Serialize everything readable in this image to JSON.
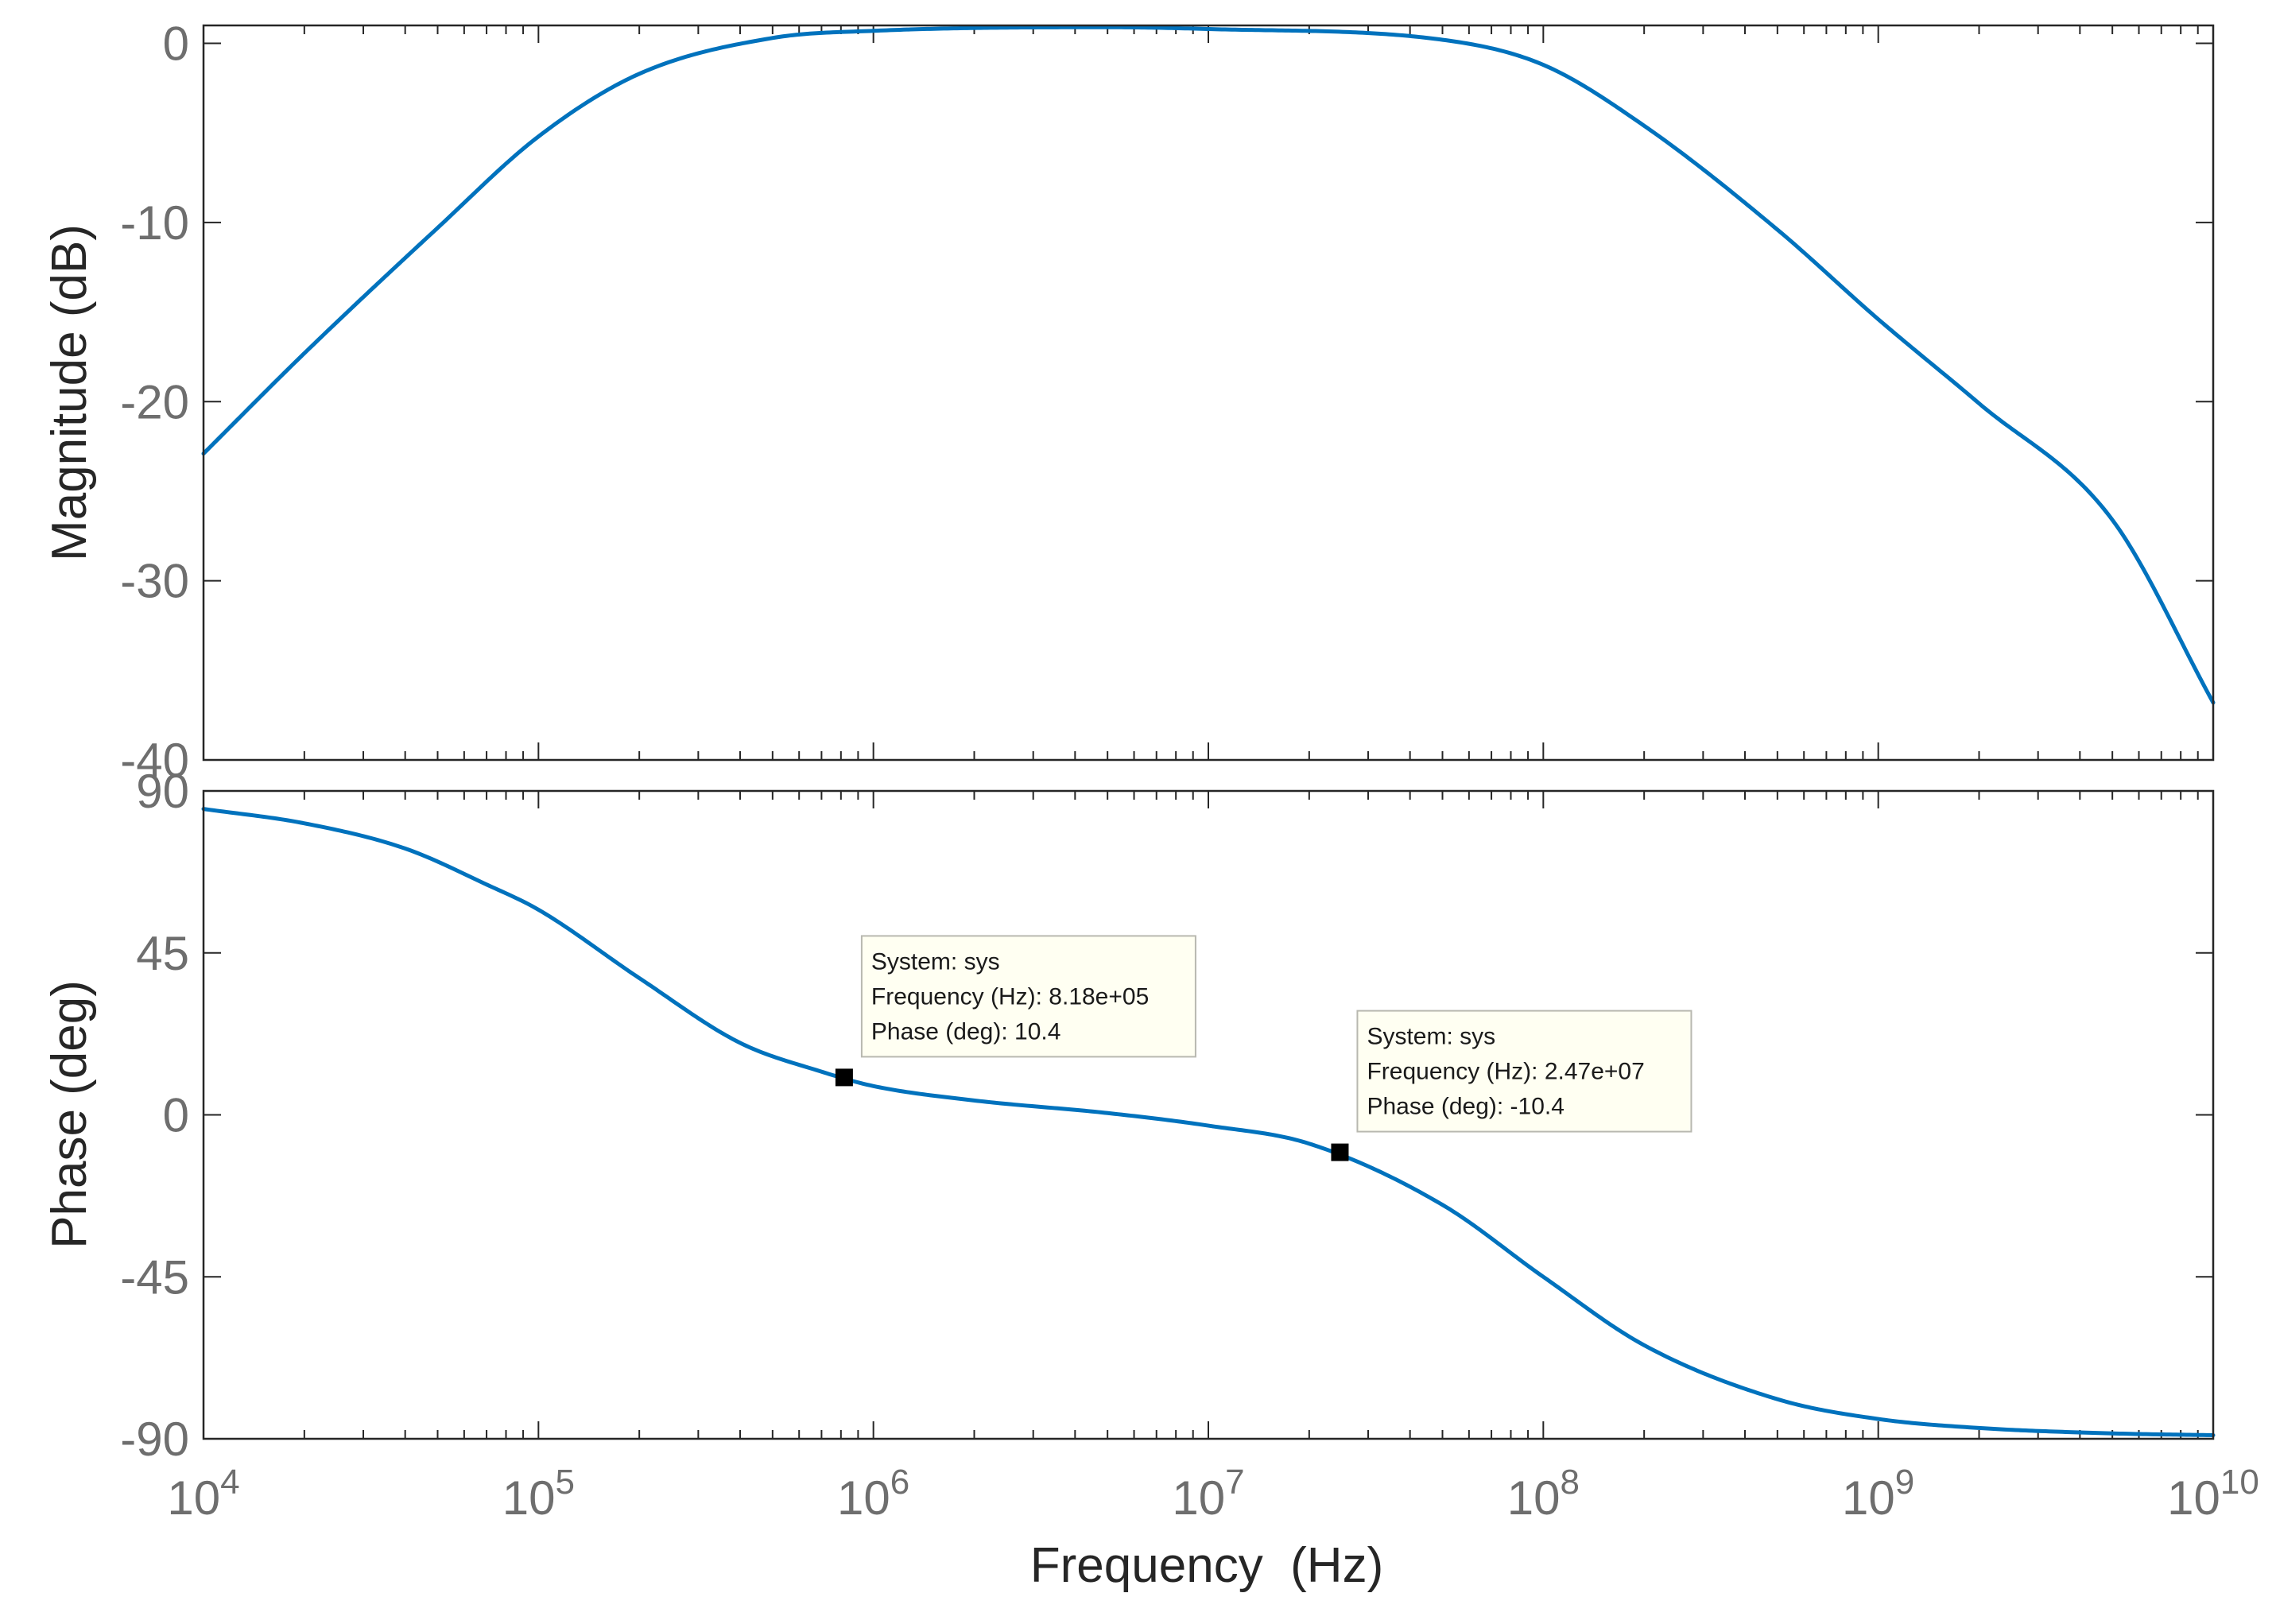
{
  "chart_data": [
    {
      "type": "line",
      "panel": "magnitude",
      "xscale": "log",
      "xlim": [
        10000,
        10000000000
      ],
      "ylim": [
        -40,
        1
      ],
      "yticks": [
        0,
        -10,
        -20,
        -30,
        -40
      ],
      "ytick_labels": [
        "0",
        "-10",
        "-20",
        "-30",
        "-40"
      ],
      "ylabel": "Magnitude (dB)",
      "xlabel": "",
      "grid": false,
      "series": [
        {
          "name": "sys",
          "color": "#0072bd",
          "x": [
            10000,
            20000,
            50000,
            100000,
            200000,
            500000,
            1000000,
            5000000,
            10000000,
            50000000,
            100000000,
            200000000,
            500000000,
            1000000000,
            2000000000,
            5000000000,
            10000000000
          ],
          "y": [
            -22.9,
            -17.3,
            -10.3,
            -5.2,
            -1.7,
            0.3,
            0.7,
            0.9,
            0.8,
            0.2,
            -1.2,
            -4.6,
            -10.4,
            -15.4,
            -20.1,
            -26.6,
            -36.8
          ]
        }
      ]
    },
    {
      "type": "line",
      "panel": "phase",
      "xscale": "log",
      "xlim": [
        10000,
        10000000000
      ],
      "ylim": [
        -90,
        90
      ],
      "yticks": [
        90,
        45,
        0,
        -45,
        -90
      ],
      "ytick_labels": [
        "90",
        "45",
        "0",
        "-45",
        "-90"
      ],
      "xticks": [
        10000,
        100000,
        1000000,
        10000000,
        100000000,
        1000000000,
        10000000000
      ],
      "xtick_labels": [
        "10^4",
        "10^5",
        "10^6",
        "10^7",
        "10^8",
        "10^9",
        "10^10"
      ],
      "ylabel": "Phase (deg)",
      "xlabel": "Frequency  (Hz)",
      "grid": false,
      "series": [
        {
          "name": "sys",
          "color": "#0072bd",
          "x": [
            10000,
            20000,
            40000,
            70000,
            100000,
            200000,
            400000,
            700000,
            1000000,
            2000000,
            5000000,
            10000000,
            20000000,
            50000000,
            100000000,
            200000000,
            500000000,
            1000000000,
            2000000000,
            5000000000,
            10000000000
          ],
          "y": [
            85,
            81,
            74,
            64,
            57,
            38,
            20,
            12,
            8,
            4,
            0.5,
            -3,
            -8,
            -25,
            -45,
            -64,
            -79,
            -84.5,
            -87,
            -88.5,
            -89
          ]
        }
      ],
      "datatips": [
        {
          "x": 818000,
          "y": 10.4,
          "lines": [
            "System: sys",
            "Frequency (Hz): 8.18e+05",
            "Phase (deg): 10.4"
          ]
        },
        {
          "x": 24700000,
          "y": -10.4,
          "lines": [
            "System: sys",
            "Frequency (Hz): 2.47e+07",
            "Phase (deg): -10.4"
          ]
        }
      ]
    }
  ]
}
